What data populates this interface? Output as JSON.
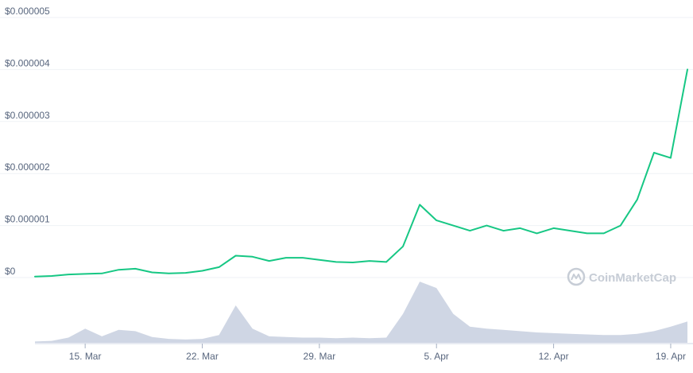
{
  "chart_data": {
    "type": "line",
    "title": "",
    "xlabel": "",
    "ylabel": "",
    "y_ticks": [
      "$0",
      "$0.000001",
      "$0.000002",
      "$0.000003",
      "$0.000004",
      "$0.000005"
    ],
    "ylim": [
      0,
      5e-06
    ],
    "x_ticks": [
      "15. Mar",
      "22. Mar",
      "29. Mar",
      "5. Apr",
      "12. Apr",
      "19. Apr"
    ],
    "xlim": [
      "2021-03-12",
      "2021-04-20"
    ],
    "grid": true,
    "line_color": "#16c784",
    "volume_color": "#cfd6e4",
    "series": [
      {
        "values": [
          [
            "2021-03-12",
            2e-08
          ],
          [
            "2021-03-13",
            3e-08
          ],
          [
            "2021-03-14",
            6e-08
          ],
          [
            "2021-03-15",
            7e-08
          ],
          [
            "2021-03-16",
            8e-08
          ],
          [
            "2021-03-17",
            1.5e-07
          ],
          [
            "2021-03-18",
            1.7e-07
          ],
          [
            "2021-03-19",
            1e-07
          ],
          [
            "2021-03-20",
            8e-08
          ],
          [
            "2021-03-21",
            9e-08
          ],
          [
            "2021-03-22",
            1.3e-07
          ],
          [
            "2021-03-23",
            2e-07
          ],
          [
            "2021-03-24",
            4.2e-07
          ],
          [
            "2021-03-25",
            4e-07
          ],
          [
            "2021-03-26",
            3.2e-07
          ],
          [
            "2021-03-27",
            3.8e-07
          ],
          [
            "2021-03-28",
            3.8e-07
          ],
          [
            "2021-03-29",
            3.4e-07
          ],
          [
            "2021-03-30",
            3e-07
          ],
          [
            "2021-03-31",
            2.9e-07
          ],
          [
            "2021-04-01",
            3.2e-07
          ],
          [
            "2021-04-02",
            3e-07
          ],
          [
            "2021-04-03",
            6e-07
          ],
          [
            "2021-04-04",
            1.4e-06
          ],
          [
            "2021-04-05",
            1.1e-06
          ],
          [
            "2021-04-06",
            1e-06
          ],
          [
            "2021-04-07",
            9e-07
          ],
          [
            "2021-04-08",
            1e-06
          ],
          [
            "2021-04-09",
            9e-07
          ],
          [
            "2021-04-10",
            9.5e-07
          ],
          [
            "2021-04-11",
            8.5e-07
          ],
          [
            "2021-04-12",
            9.5e-07
          ],
          [
            "2021-04-13",
            9e-07
          ],
          [
            "2021-04-14",
            8.5e-07
          ],
          [
            "2021-04-15",
            8.5e-07
          ],
          [
            "2021-04-16",
            1e-06
          ],
          [
            "2021-04-17",
            1.5e-06
          ],
          [
            "2021-04-18",
            2.4e-06
          ],
          [
            "2021-04-19",
            2.3e-06
          ],
          [
            "2021-04-20",
            4e-06
          ]
        ]
      }
    ],
    "volume": [
      [
        "2021-03-12",
        0.02
      ],
      [
        "2021-03-13",
        0.03
      ],
      [
        "2021-03-14",
        0.08
      ],
      [
        "2021-03-15",
        0.22
      ],
      [
        "2021-03-16",
        0.1
      ],
      [
        "2021-03-17",
        0.2
      ],
      [
        "2021-03-18",
        0.18
      ],
      [
        "2021-03-19",
        0.09
      ],
      [
        "2021-03-20",
        0.06
      ],
      [
        "2021-03-21",
        0.05
      ],
      [
        "2021-03-22",
        0.06
      ],
      [
        "2021-03-23",
        0.12
      ],
      [
        "2021-03-24",
        0.58
      ],
      [
        "2021-03-25",
        0.22
      ],
      [
        "2021-03-26",
        0.1
      ],
      [
        "2021-03-27",
        0.09
      ],
      [
        "2021-03-28",
        0.08
      ],
      [
        "2021-03-29",
        0.08
      ],
      [
        "2021-03-30",
        0.07
      ],
      [
        "2021-03-31",
        0.08
      ],
      [
        "2021-04-01",
        0.07
      ],
      [
        "2021-04-02",
        0.08
      ],
      [
        "2021-04-03",
        0.45
      ],
      [
        "2021-04-04",
        0.95
      ],
      [
        "2021-04-05",
        0.85
      ],
      [
        "2021-04-06",
        0.45
      ],
      [
        "2021-04-07",
        0.25
      ],
      [
        "2021-04-08",
        0.22
      ],
      [
        "2021-04-09",
        0.2
      ],
      [
        "2021-04-10",
        0.18
      ],
      [
        "2021-04-11",
        0.16
      ],
      [
        "2021-04-12",
        0.15
      ],
      [
        "2021-04-13",
        0.14
      ],
      [
        "2021-04-14",
        0.13
      ],
      [
        "2021-04-15",
        0.12
      ],
      [
        "2021-04-16",
        0.12
      ],
      [
        "2021-04-17",
        0.14
      ],
      [
        "2021-04-18",
        0.18
      ],
      [
        "2021-04-19",
        0.25
      ],
      [
        "2021-04-20",
        0.33
      ]
    ],
    "watermark": "CoinMarketCap"
  }
}
